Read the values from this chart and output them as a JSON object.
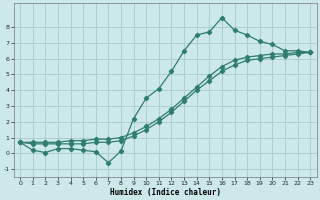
{
  "xlabel": "Humidex (Indice chaleur)",
  "ylabel": "",
  "bg_color": "#cde8e8",
  "grid_color": "#aacfcf",
  "line_color": "#2e7d6e",
  "xlim": [
    -0.5,
    23.5
  ],
  "ylim": [
    -1.5,
    9.5
  ],
  "xticks": [
    0,
    1,
    2,
    3,
    4,
    5,
    6,
    7,
    8,
    9,
    10,
    11,
    12,
    13,
    14,
    15,
    16,
    17,
    18,
    19,
    20,
    21,
    22,
    23
  ],
  "yticks": [
    -1,
    0,
    1,
    2,
    3,
    4,
    5,
    6,
    7,
    8
  ],
  "curve_x": [
    0,
    1,
    2,
    3,
    4,
    5,
    6,
    7,
    8,
    9,
    10,
    11,
    12,
    13,
    14,
    15,
    16,
    17,
    18,
    19,
    20,
    21,
    22,
    23
  ],
  "curve_y": [
    0.7,
    0.2,
    0.05,
    0.3,
    0.3,
    0.2,
    0.1,
    -0.6,
    0.15,
    2.2,
    3.5,
    4.1,
    5.2,
    6.5,
    7.5,
    7.7,
    8.6,
    7.8,
    7.5,
    7.1,
    6.9,
    6.5,
    6.5,
    6.4
  ],
  "line1_x": [
    0,
    1,
    2,
    3,
    4,
    5,
    6,
    7,
    8,
    9,
    10,
    11,
    12,
    13,
    14,
    15,
    16,
    17,
    18,
    19,
    20,
    21,
    22,
    23
  ],
  "line1_y": [
    0.7,
    0.7,
    0.7,
    0.7,
    0.8,
    0.8,
    0.9,
    0.9,
    1.0,
    1.3,
    1.7,
    2.2,
    2.8,
    3.5,
    4.2,
    4.9,
    5.5,
    5.9,
    6.1,
    6.2,
    6.3,
    6.3,
    6.4,
    6.4
  ],
  "line2_x": [
    0,
    1,
    2,
    3,
    4,
    5,
    6,
    7,
    8,
    9,
    10,
    11,
    12,
    13,
    14,
    15,
    16,
    17,
    18,
    19,
    20,
    21,
    22,
    23
  ],
  "line2_y": [
    0.7,
    0.6,
    0.6,
    0.6,
    0.6,
    0.6,
    0.7,
    0.7,
    0.8,
    1.1,
    1.5,
    2.0,
    2.6,
    3.3,
    4.0,
    4.6,
    5.2,
    5.6,
    5.9,
    6.0,
    6.1,
    6.2,
    6.3,
    6.4
  ]
}
